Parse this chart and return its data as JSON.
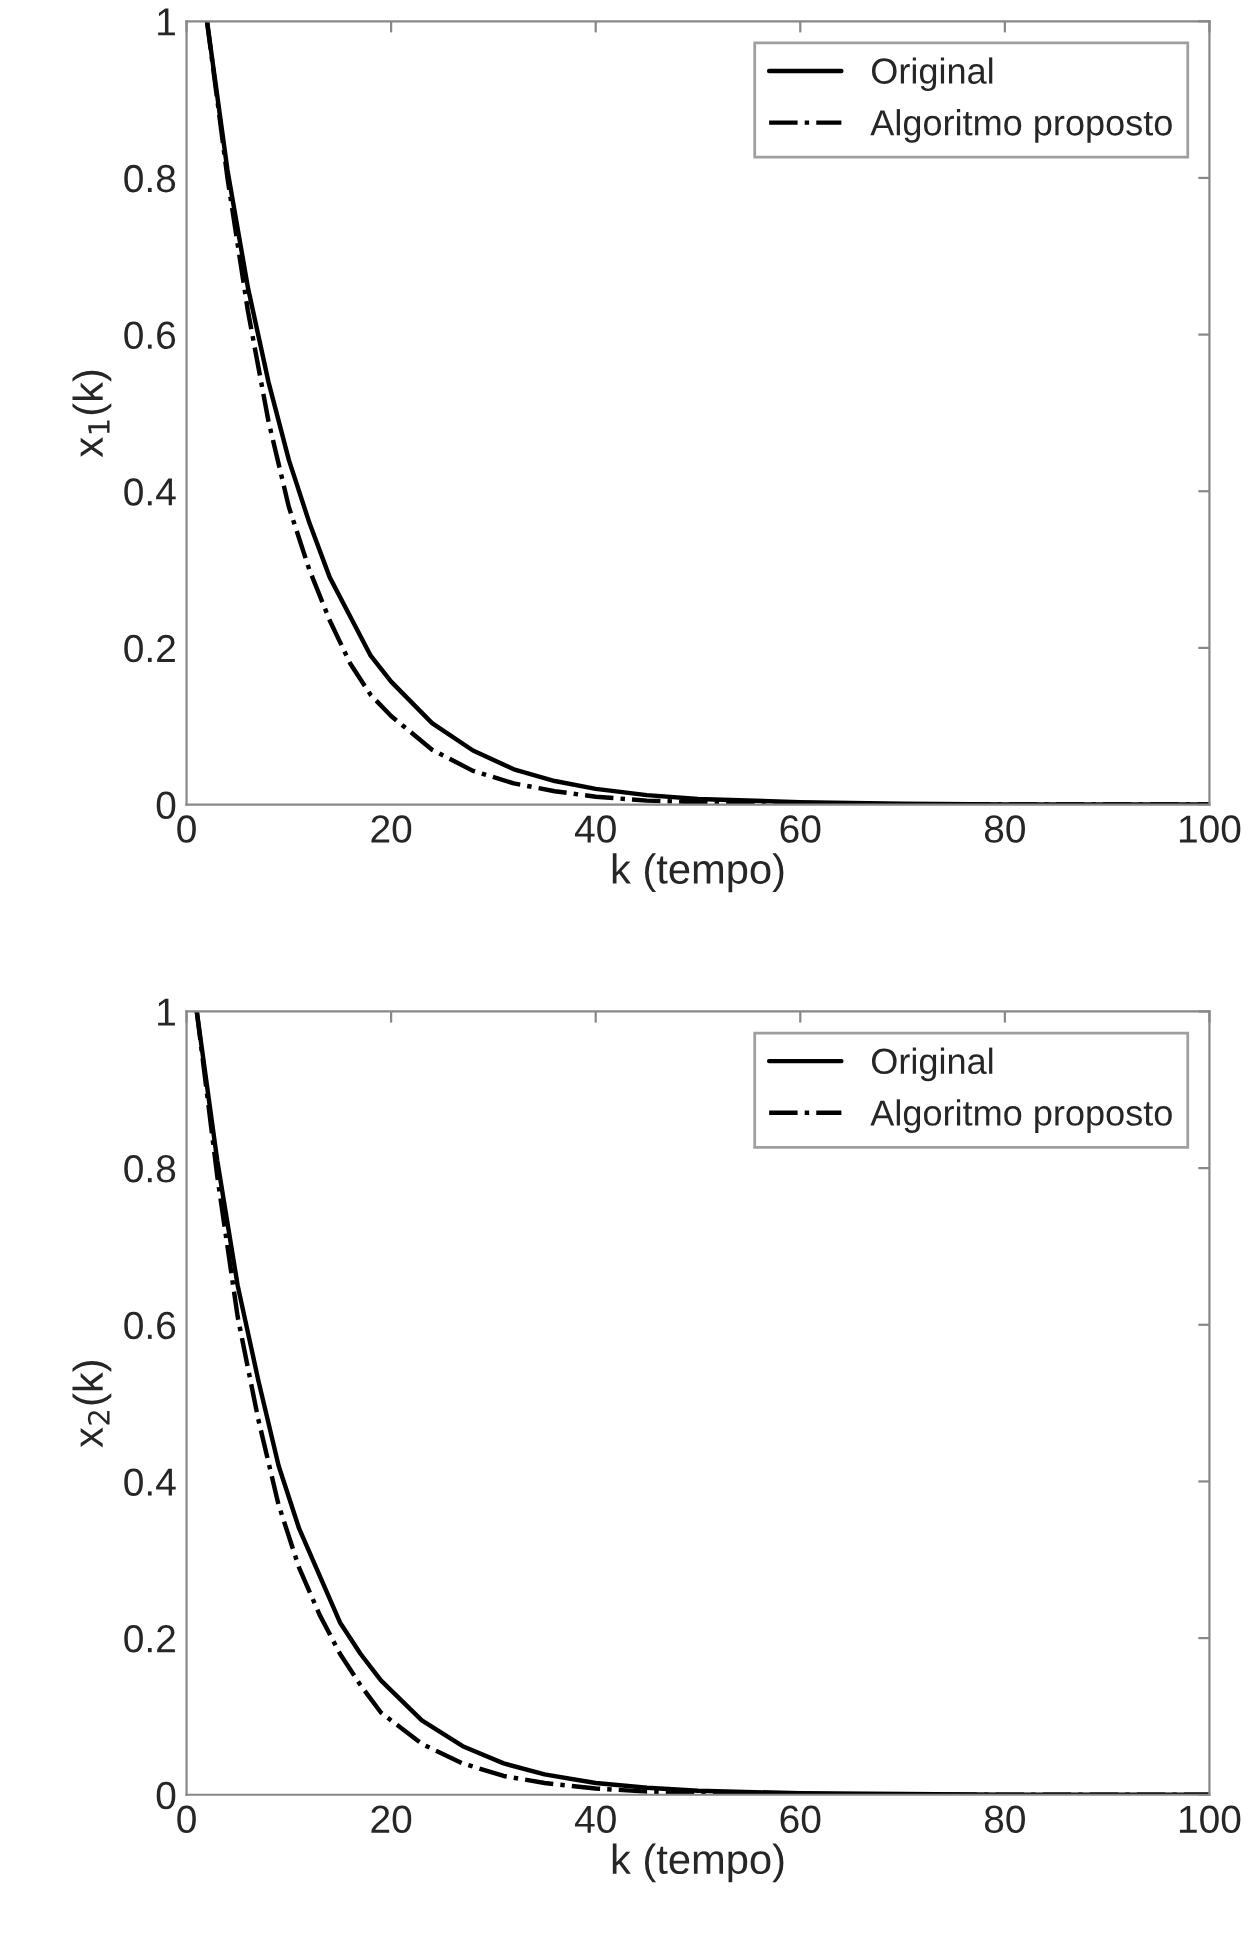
{
  "chart_data": [
    {
      "type": "line",
      "xlabel": "k (tempo)",
      "ylabel": "x$_{1}$(k)",
      "xlim": [
        0,
        100
      ],
      "ylim": [
        0,
        1
      ],
      "xticks": [
        0,
        20,
        40,
        60,
        80,
        100
      ],
      "yticks": [
        0,
        0.2,
        0.4,
        0.6,
        0.8,
        1
      ],
      "grid": false,
      "legend": "top right",
      "series": [
        {
          "name": "Original",
          "color": "#000000",
          "line_style": "solid",
          "x": [
            2,
            4,
            6,
            8,
            10,
            12,
            14,
            16,
            18,
            20,
            24,
            28,
            32,
            36,
            40,
            45,
            50,
            60,
            70,
            80,
            90,
            100
          ],
          "values": [
            1,
            0.81,
            0.66,
            0.54,
            0.44,
            0.36,
            0.29,
            0.24,
            0.19,
            0.157,
            0.104,
            0.069,
            0.045,
            0.03,
            0.02,
            0.012,
            0.007,
            0.003,
            0.001,
            0,
            0,
            0
          ]
        },
        {
          "name": "Algoritmo proposto",
          "color": "#000000",
          "line_style": "dashdot",
          "x": [
            2,
            4,
            6,
            8,
            10,
            12,
            14,
            16,
            18,
            20,
            24,
            28,
            32,
            36,
            40,
            45,
            50,
            60,
            70,
            80,
            90,
            100
          ],
          "values": [
            1,
            0.8,
            0.63,
            0.49,
            0.38,
            0.3,
            0.235,
            0.18,
            0.14,
            0.113,
            0.07,
            0.043,
            0.027,
            0.017,
            0.01,
            0.005,
            0.003,
            0.001,
            0,
            0,
            0,
            0
          ]
        }
      ]
    },
    {
      "type": "line",
      "xlabel": "k (tempo)",
      "ylabel": "x$_{2}$(k)",
      "xlim": [
        0,
        100
      ],
      "ylim": [
        0,
        1
      ],
      "xticks": [
        0,
        20,
        40,
        60,
        80,
        100
      ],
      "yticks": [
        0,
        0.2,
        0.4,
        0.6,
        0.8,
        1
      ],
      "grid": false,
      "legend": "top right",
      "series": [
        {
          "name": "Original",
          "color": "#000000",
          "line_style": "solid",
          "x": [
            1,
            3,
            5,
            7,
            9,
            11,
            13,
            15,
            17,
            19,
            23,
            27,
            31,
            35,
            40,
            45,
            50,
            60,
            70,
            80,
            90,
            100
          ],
          "values": [
            1,
            0.81,
            0.65,
            0.53,
            0.42,
            0.34,
            0.28,
            0.22,
            0.18,
            0.146,
            0.095,
            0.062,
            0.04,
            0.026,
            0.015,
            0.009,
            0.005,
            0.002,
            0.001,
            0,
            0,
            0
          ]
        },
        {
          "name": "Algoritmo proposto",
          "color": "#000000",
          "line_style": "dashdot",
          "x": [
            1,
            3,
            5,
            7,
            9,
            11,
            13,
            15,
            17,
            19,
            23,
            27,
            31,
            35,
            40,
            45,
            50,
            60,
            70,
            80,
            90,
            100
          ],
          "values": [
            1,
            0.79,
            0.61,
            0.48,
            0.37,
            0.29,
            0.23,
            0.18,
            0.14,
            0.105,
            0.065,
            0.04,
            0.024,
            0.015,
            0.008,
            0.004,
            0.002,
            0.001,
            0,
            0,
            0,
            0
          ]
        }
      ]
    }
  ]
}
